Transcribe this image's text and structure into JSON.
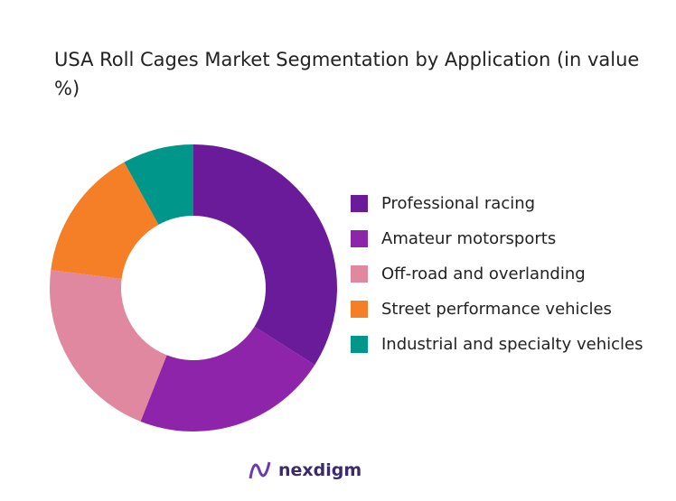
{
  "chart_data": {
    "type": "donut",
    "title": "USA Roll Cages Market Segmentation by Application (in value %)",
    "categories": [
      "Professional racing",
      "Amateur motorsports",
      "Off-road and overlanding",
      "Street performance vehicles",
      "Industrial and specialty vehicles"
    ],
    "values": [
      34,
      22,
      21,
      15,
      8
    ],
    "colors": [
      "#6a1b9a",
      "#8e24aa",
      "#e0889f",
      "#f57f27",
      "#00968a"
    ],
    "legend": "right"
  },
  "logo": "nexdigm"
}
